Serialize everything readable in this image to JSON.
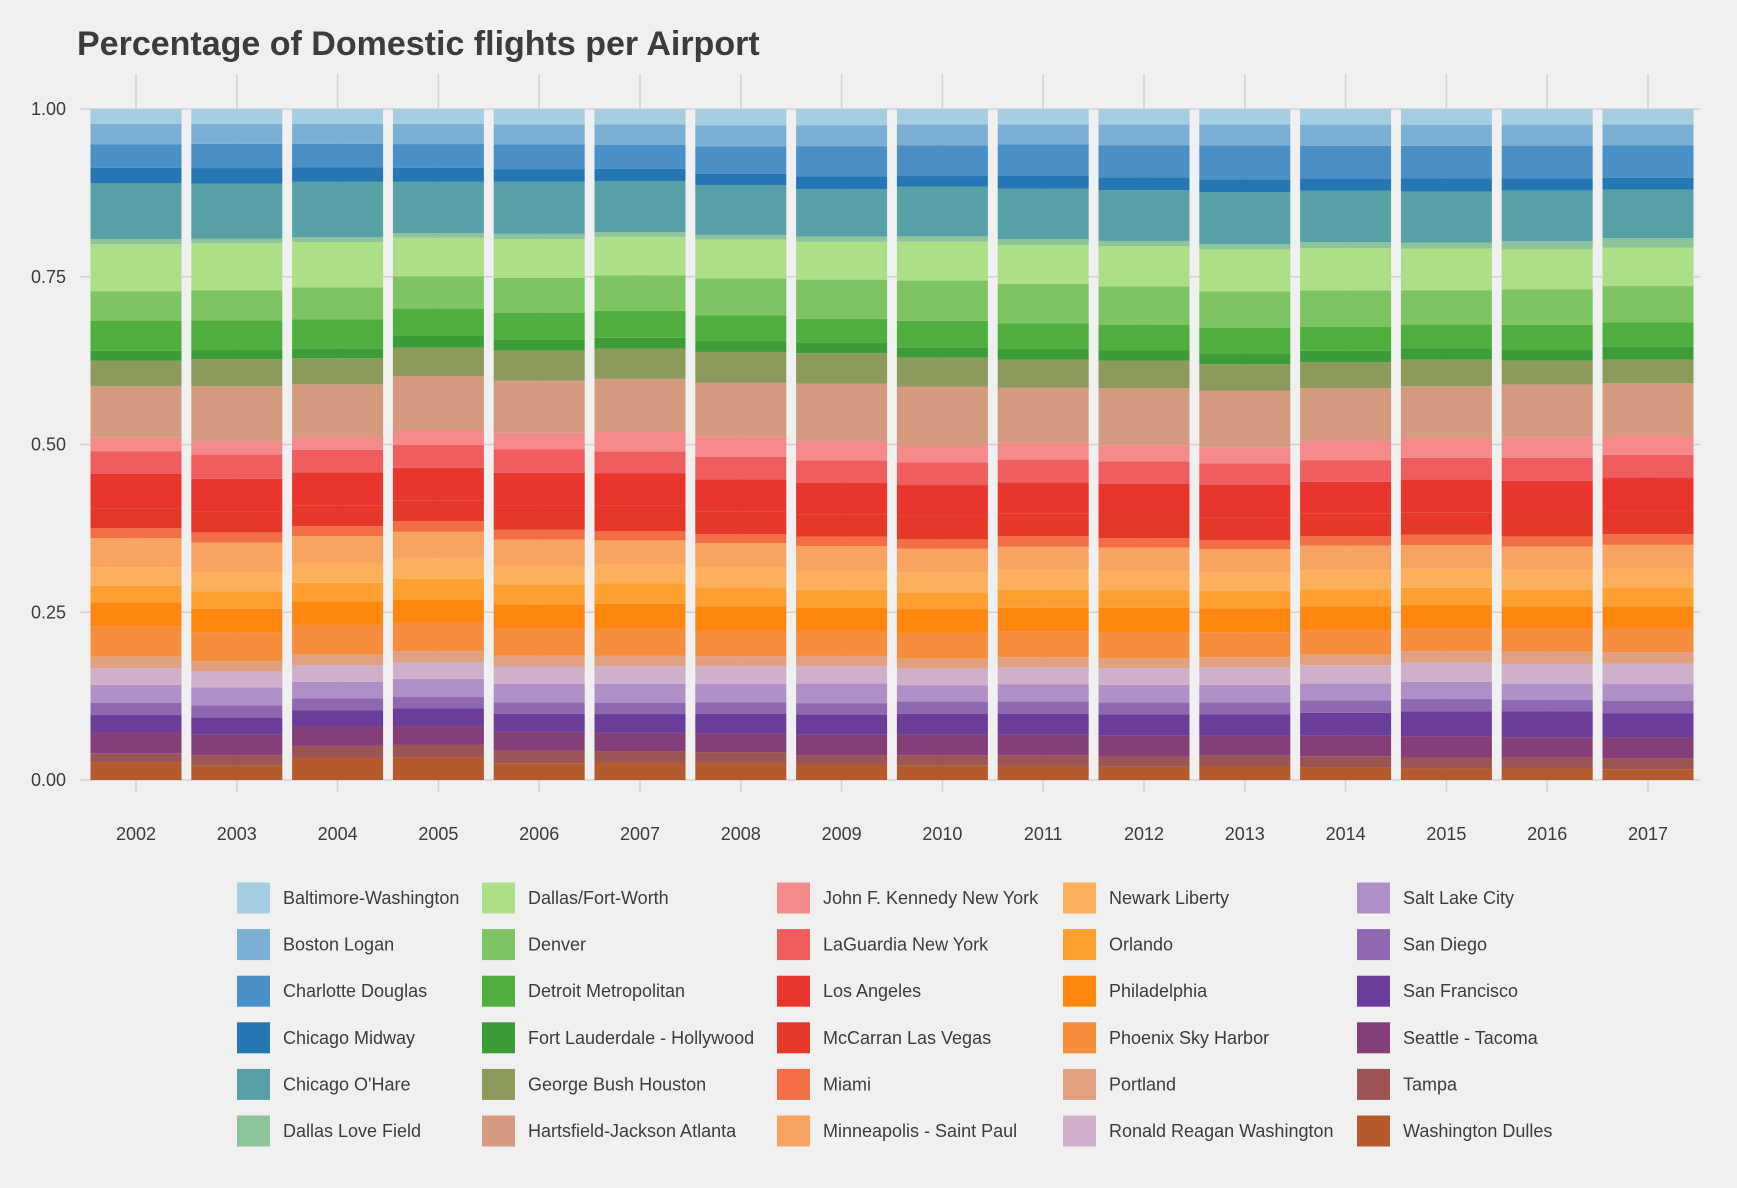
{
  "chart_data": {
    "type": "bar",
    "stacked": true,
    "title": "Percentage of Domestic flights per Airport",
    "xlabel": "",
    "ylabel": "",
    "ylim": [
      0,
      1
    ],
    "yticks": [
      "0.00",
      "0.25",
      "0.50",
      "0.75",
      "1.00"
    ],
    "ytick_values": [
      0,
      0.25,
      0.5,
      0.75,
      1
    ],
    "grid": true,
    "legend_position": "bottom",
    "categories": [
      "2002",
      "2003",
      "2004",
      "2005",
      "2006",
      "2007",
      "2008",
      "2009",
      "2010",
      "2011",
      "2012",
      "2013",
      "2014",
      "2015",
      "2016",
      "2017"
    ],
    "series": [
      {
        "name": "Baltimore-Washington",
        "color": "#a6cee3",
        "values": [
          0.022,
          0.022,
          0.022,
          0.022,
          0.023,
          0.023,
          0.024,
          0.024,
          0.023,
          0.023,
          0.023,
          0.023,
          0.023,
          0.023,
          0.023,
          0.023
        ]
      },
      {
        "name": "Boston Logan",
        "color": "#7bafd4",
        "values": [
          0.031,
          0.03,
          0.03,
          0.03,
          0.03,
          0.03,
          0.031,
          0.031,
          0.031,
          0.03,
          0.031,
          0.031,
          0.031,
          0.031,
          0.031,
          0.031
        ]
      },
      {
        "name": "Charlotte Douglas",
        "color": "#4a90c6",
        "values": [
          0.035,
          0.036,
          0.035,
          0.035,
          0.037,
          0.036,
          0.04,
          0.045,
          0.046,
          0.046,
          0.048,
          0.05,
          0.048,
          0.048,
          0.048,
          0.048
        ]
      },
      {
        "name": "Chicago Midway",
        "color": "#2577b3",
        "values": [
          0.023,
          0.023,
          0.022,
          0.021,
          0.019,
          0.018,
          0.017,
          0.019,
          0.016,
          0.02,
          0.019,
          0.019,
          0.018,
          0.019,
          0.018,
          0.017
        ]
      },
      {
        "name": "Chicago O'Hare",
        "color": "#57a0a6",
        "values": [
          0.083,
          0.082,
          0.083,
          0.076,
          0.078,
          0.076,
          0.073,
          0.07,
          0.074,
          0.075,
          0.076,
          0.077,
          0.076,
          0.075,
          0.075,
          0.072
        ]
      },
      {
        "name": "Dallas Love Field",
        "color": "#8dc49a",
        "values": [
          0.008,
          0.007,
          0.007,
          0.007,
          0.008,
          0.007,
          0.007,
          0.008,
          0.008,
          0.009,
          0.008,
          0.008,
          0.009,
          0.009,
          0.012,
          0.014
        ]
      },
      {
        "name": "Dallas/Fort-Worth",
        "color": "#addf89",
        "values": [
          0.07,
          0.07,
          0.068,
          0.057,
          0.058,
          0.057,
          0.057,
          0.056,
          0.058,
          0.058,
          0.06,
          0.062,
          0.062,
          0.061,
          0.059,
          0.057
        ]
      },
      {
        "name": "Denver",
        "color": "#7ec462",
        "values": [
          0.044,
          0.045,
          0.048,
          0.048,
          0.052,
          0.053,
          0.054,
          0.058,
          0.06,
          0.059,
          0.057,
          0.054,
          0.054,
          0.05,
          0.052,
          0.054
        ]
      },
      {
        "name": "Detroit Metropolitan",
        "color": "#51af3f",
        "values": [
          0.045,
          0.043,
          0.043,
          0.04,
          0.04,
          0.04,
          0.038,
          0.036,
          0.04,
          0.038,
          0.038,
          0.038,
          0.035,
          0.035,
          0.036,
          0.036
        ]
      },
      {
        "name": "Fort Lauderdale - Hollywood",
        "color": "#3c9d38",
        "values": [
          0.015,
          0.015,
          0.015,
          0.018,
          0.017,
          0.016,
          0.016,
          0.015,
          0.015,
          0.016,
          0.016,
          0.016,
          0.017,
          0.017,
          0.017,
          0.019
        ]
      },
      {
        "name": "George Bush Houston",
        "color": "#8c9a5b",
        "values": [
          0.038,
          0.04,
          0.039,
          0.042,
          0.045,
          0.045,
          0.045,
          0.045,
          0.043,
          0.042,
          0.041,
          0.039,
          0.038,
          0.039,
          0.035,
          0.035
        ]
      },
      {
        "name": "Hartsfield-Jackson Atlanta",
        "color": "#d59b81",
        "values": [
          0.077,
          0.082,
          0.078,
          0.08,
          0.078,
          0.079,
          0.079,
          0.086,
          0.088,
          0.082,
          0.085,
          0.084,
          0.077,
          0.076,
          0.078,
          0.078
        ]
      },
      {
        "name": "John F. Kennedy New York",
        "color": "#f58a8a",
        "values": [
          0.02,
          0.02,
          0.02,
          0.022,
          0.025,
          0.029,
          0.03,
          0.028,
          0.025,
          0.025,
          0.024,
          0.024,
          0.029,
          0.029,
          0.03,
          0.028
        ]
      },
      {
        "name": "LaGuardia New York",
        "color": "#ef5d5f",
        "values": [
          0.034,
          0.036,
          0.034,
          0.034,
          0.035,
          0.032,
          0.033,
          0.033,
          0.034,
          0.034,
          0.034,
          0.032,
          0.032,
          0.032,
          0.034,
          0.033
        ]
      },
      {
        "name": "Los Angeles",
        "color": "#e8352e",
        "values": [
          0.051,
          0.049,
          0.049,
          0.049,
          0.049,
          0.048,
          0.047,
          0.047,
          0.047,
          0.046,
          0.047,
          0.048,
          0.047,
          0.048,
          0.049,
          0.05
        ]
      },
      {
        "name": "McCarran Las Vegas",
        "color": "#e5382a",
        "values": [
          0.03,
          0.031,
          0.031,
          0.03,
          0.036,
          0.038,
          0.034,
          0.033,
          0.034,
          0.034,
          0.034,
          0.034,
          0.033,
          0.033,
          0.033,
          0.034
        ]
      },
      {
        "name": "Miami",
        "color": "#f36e45",
        "values": [
          0.015,
          0.015,
          0.015,
          0.016,
          0.015,
          0.014,
          0.013,
          0.014,
          0.014,
          0.016,
          0.014,
          0.013,
          0.014,
          0.015,
          0.015,
          0.016
        ]
      },
      {
        "name": "Minneapolis - Saint Paul",
        "color": "#f8a460",
        "values": [
          0.043,
          0.044,
          0.041,
          0.04,
          0.038,
          0.036,
          0.036,
          0.037,
          0.036,
          0.035,
          0.036,
          0.035,
          0.036,
          0.035,
          0.035,
          0.035
        ]
      },
      {
        "name": "Newark Liberty",
        "color": "#fcb05c",
        "values": [
          0.028,
          0.029,
          0.029,
          0.03,
          0.029,
          0.028,
          0.029,
          0.028,
          0.029,
          0.029,
          0.028,
          0.027,
          0.028,
          0.028,
          0.028,
          0.028
        ]
      },
      {
        "name": "Orlando",
        "color": "#fda031",
        "values": [
          0.025,
          0.026,
          0.028,
          0.03,
          0.03,
          0.03,
          0.028,
          0.027,
          0.025,
          0.027,
          0.026,
          0.026,
          0.025,
          0.025,
          0.025,
          0.028
        ]
      },
      {
        "name": "Philadelphia",
        "color": "#ff870f",
        "values": [
          0.036,
          0.035,
          0.035,
          0.035,
          0.036,
          0.037,
          0.036,
          0.034,
          0.035,
          0.035,
          0.036,
          0.035,
          0.035,
          0.034,
          0.033,
          0.032
        ]
      },
      {
        "name": "Phoenix Sky Harbor",
        "color": "#f58d3c",
        "values": [
          0.045,
          0.043,
          0.044,
          0.042,
          0.041,
          0.04,
          0.037,
          0.037,
          0.039,
          0.039,
          0.039,
          0.037,
          0.036,
          0.034,
          0.034,
          0.036
        ]
      },
      {
        "name": "Portland",
        "color": "#e1a080",
        "values": [
          0.017,
          0.015,
          0.016,
          0.016,
          0.016,
          0.016,
          0.015,
          0.015,
          0.015,
          0.015,
          0.015,
          0.015,
          0.016,
          0.017,
          0.018,
          0.017
        ]
      },
      {
        "name": "Ronald Reagan Washington",
        "color": "#d0afcb",
        "values": [
          0.025,
          0.024,
          0.025,
          0.025,
          0.026,
          0.026,
          0.026,
          0.026,
          0.025,
          0.025,
          0.025,
          0.026,
          0.027,
          0.028,
          0.029,
          0.03
        ]
      },
      {
        "name": "Salt Lake City",
        "color": "#af90c6",
        "values": [
          0.027,
          0.027,
          0.025,
          0.027,
          0.028,
          0.028,
          0.027,
          0.029,
          0.024,
          0.026,
          0.026,
          0.026,
          0.025,
          0.025,
          0.024,
          0.025
        ]
      },
      {
        "name": "San Diego",
        "color": "#8e68b1",
        "values": [
          0.018,
          0.018,
          0.018,
          0.017,
          0.017,
          0.017,
          0.017,
          0.017,
          0.018,
          0.018,
          0.018,
          0.018,
          0.018,
          0.018,
          0.017,
          0.018
        ]
      },
      {
        "name": "San Francisco",
        "color": "#6b3d9a",
        "values": [
          0.026,
          0.025,
          0.024,
          0.026,
          0.027,
          0.028,
          0.028,
          0.03,
          0.031,
          0.031,
          0.032,
          0.031,
          0.034,
          0.037,
          0.038,
          0.036
        ]
      },
      {
        "name": "Seattle - Tacoma",
        "color": "#843f79",
        "values": [
          0.031,
          0.031,
          0.029,
          0.028,
          0.028,
          0.027,
          0.028,
          0.03,
          0.031,
          0.031,
          0.031,
          0.03,
          0.03,
          0.031,
          0.03,
          0.031
        ]
      },
      {
        "name": "Tampa",
        "color": "#9c5555",
        "values": [
          0.014,
          0.015,
          0.018,
          0.018,
          0.019,
          0.017,
          0.016,
          0.014,
          0.015,
          0.016,
          0.015,
          0.016,
          0.016,
          0.016,
          0.016,
          0.016
        ]
      },
      {
        "name": "Washington Dulles",
        "color": "#b45a2c",
        "values": [
          0.026,
          0.022,
          0.033,
          0.034,
          0.025,
          0.026,
          0.025,
          0.023,
          0.022,
          0.021,
          0.02,
          0.02,
          0.019,
          0.017,
          0.017,
          0.016
        ]
      }
    ]
  }
}
